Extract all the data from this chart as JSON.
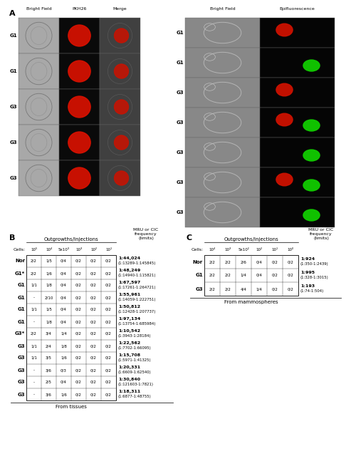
{
  "panel_A_label": "A",
  "panel_B_label": "B",
  "panel_C_label": "C",
  "panel_A_left_cols": [
    "Bright Field",
    "PKH26",
    "Merge"
  ],
  "panel_A_left_rows": [
    "G1",
    "G1",
    "G3",
    "G3",
    "G3"
  ],
  "panel_A_right_cols": [
    "Bright Field",
    "Epifluorescence"
  ],
  "panel_A_right_rows": [
    "G1",
    "G1",
    "G3",
    "G3",
    "G3",
    "G3",
    "G3"
  ],
  "table_B_title": "From tissues",
  "table_B_outgrowths_header": "Outgrowths/Injections",
  "table_B_mru_header": "MRU or CIC\nfrequency\n(limits)",
  "table_B_cells_label": "Cells:",
  "table_B_cells_header": [
    "10⁵",
    "10⁴",
    "5x10³",
    "10³",
    "10²",
    "10¹"
  ],
  "table_B_rows": [
    [
      "Nor",
      "2/2",
      "1/5",
      "0/4",
      "0/2",
      "0/2",
      "0/2",
      "1:44,024",
      "(1:13289-1:145845)"
    ],
    [
      "G1*",
      "2/2",
      "1/6",
      "0/4",
      "0/2",
      "0/2",
      "0/2",
      "1:48,249",
      "(1:14940-1:115821)"
    ],
    [
      "G1",
      "1/1",
      "1/8",
      "0/4",
      "0/2",
      "0/2",
      "0/2",
      "1:67,597",
      "(1:17261-1:264721)"
    ],
    [
      "G1",
      "-",
      "2/10",
      "0/4",
      "0/2",
      "0/2",
      "0/2",
      "1:55,961",
      "(1:14059-1:222751)"
    ],
    [
      "G1",
      "1/1",
      "1/5",
      "0/4",
      "0/2",
      "0/2",
      "0/2",
      "1:50,812",
      "(1:12428-1:207737)"
    ],
    [
      "G1",
      "-",
      "1/8",
      "0/4",
      "0/2",
      "0/2",
      "0/2",
      "1:97,134",
      "(1:13754-1:685984)"
    ],
    [
      "G3*",
      "2/2",
      "3/4",
      "1/4",
      "0/2",
      "0/2",
      "0/2",
      "1:10,542",
      "(1:3943-1:28184)"
    ],
    [
      "G3",
      "1/1",
      "2/4",
      "1/8",
      "0/2",
      "0/2",
      "0/2",
      "1:22,562",
      "(1:7702-1:66095)"
    ],
    [
      "G3",
      "1/1",
      "3/5",
      "1/6",
      "0/2",
      "0/2",
      "0/2",
      "1:15,708",
      "(1:5971-1:41325)"
    ],
    [
      "G3",
      "-",
      "3/6",
      "0/3",
      "0/2",
      "0/2",
      "0/2",
      "1:20,331",
      "(1:6609-1:62540)"
    ],
    [
      "G3",
      "-",
      "2/5",
      "0/4",
      "0/2",
      "0/2",
      "0/2",
      "1:30,840",
      "(1:121603-1:7821)"
    ],
    [
      "G3",
      "-",
      "3/6",
      "1/6",
      "0/2",
      "0/2",
      "0/2",
      "1:18,311",
      "(1:6877-1:48755)"
    ]
  ],
  "table_C_title": "From mammospheres",
  "table_C_outgrowths_header": "Outgrowths/Injections",
  "table_C_mru_header": "MRU or CIC\nfrequency\n(limits)",
  "table_C_cells_label": "Cells:",
  "table_C_cells_header": [
    "10⁴",
    "10³",
    "5x10²",
    "10²",
    "10¹",
    "10⁰"
  ],
  "table_C_rows": [
    [
      "Nor",
      "2/2",
      "2/2",
      "2/6",
      "0/4",
      "0/2",
      "0/2",
      "1:924",
      "(1:350-1:2439)"
    ],
    [
      "G1",
      "2/2",
      "2/2",
      "1/4",
      "0/4",
      "0/2",
      "0/2",
      "1:995",
      "(1:328-1:3015)"
    ],
    [
      "G3",
      "2/2",
      "2/2",
      "4/4",
      "1/4",
      "0/2",
      "0/2",
      "1:193",
      "(1:74-1:504)"
    ]
  ],
  "bg_color": "#ffffff",
  "text_color": "#000000"
}
